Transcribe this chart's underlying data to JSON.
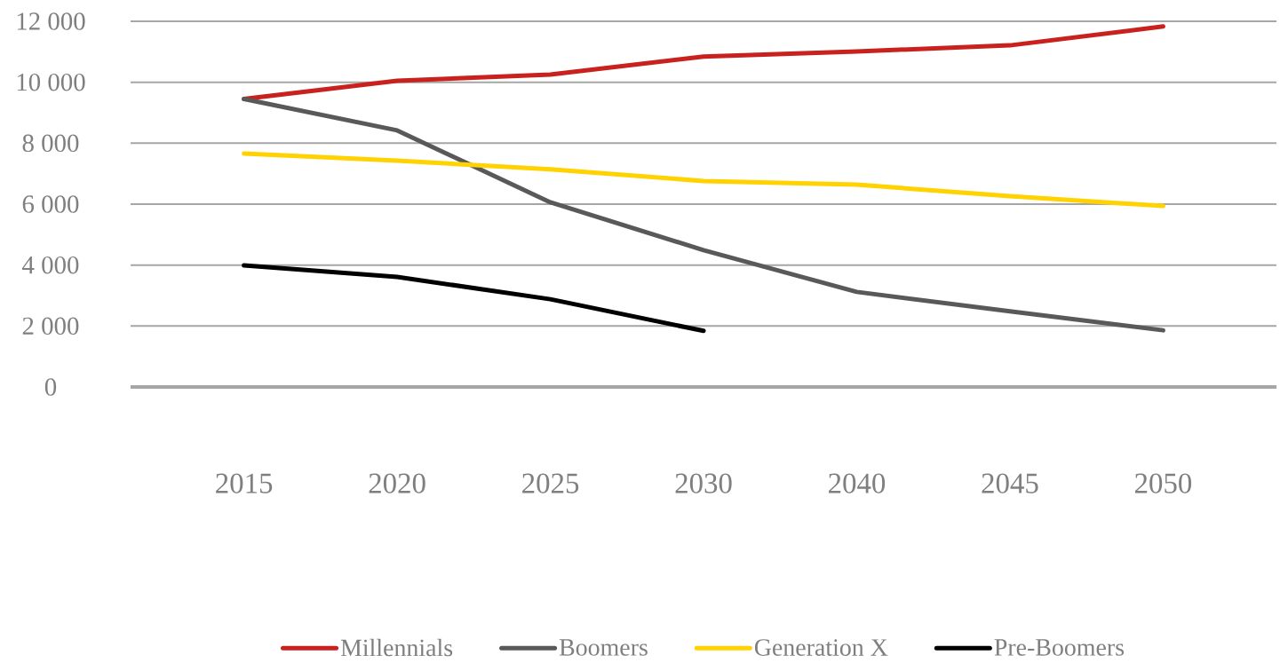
{
  "chart_data": {
    "type": "line",
    "categories": [
      "2015",
      "2020",
      "2025",
      "2030",
      "2040",
      "2045",
      "2050"
    ],
    "series": [
      {
        "name": "Millennials",
        "color": "#c9211e",
        "values": [
          9450,
          10050,
          10250,
          10840,
          11010,
          11210,
          11830
        ]
      },
      {
        "name": "Boomers",
        "color": "#595959",
        "values": [
          9450,
          8420,
          6060,
          4490,
          3120,
          2480,
          1860
        ]
      },
      {
        "name": "Generation X",
        "color": "#ffd200",
        "values": [
          7660,
          7430,
          7140,
          6760,
          6640,
          6260,
          5940
        ]
      },
      {
        "name": "Pre-Boomers",
        "color": "#000000",
        "values": [
          3990,
          3610,
          2880,
          1840,
          null,
          null,
          null
        ]
      }
    ],
    "ylim": [
      0,
      12000
    ],
    "yticks": [
      {
        "value": 0,
        "label": "0"
      },
      {
        "value": 2000,
        "label": "2 000"
      },
      {
        "value": 4000,
        "label": "4 000"
      },
      {
        "value": 6000,
        "label": "6 000"
      },
      {
        "value": 8000,
        "label": "8 000"
      },
      {
        "value": 10000,
        "label": "10 000"
      },
      {
        "value": 12000,
        "label": "12 000"
      }
    ],
    "grid": "y",
    "legend": "bottom",
    "marker": "none",
    "line_style": "solid"
  }
}
